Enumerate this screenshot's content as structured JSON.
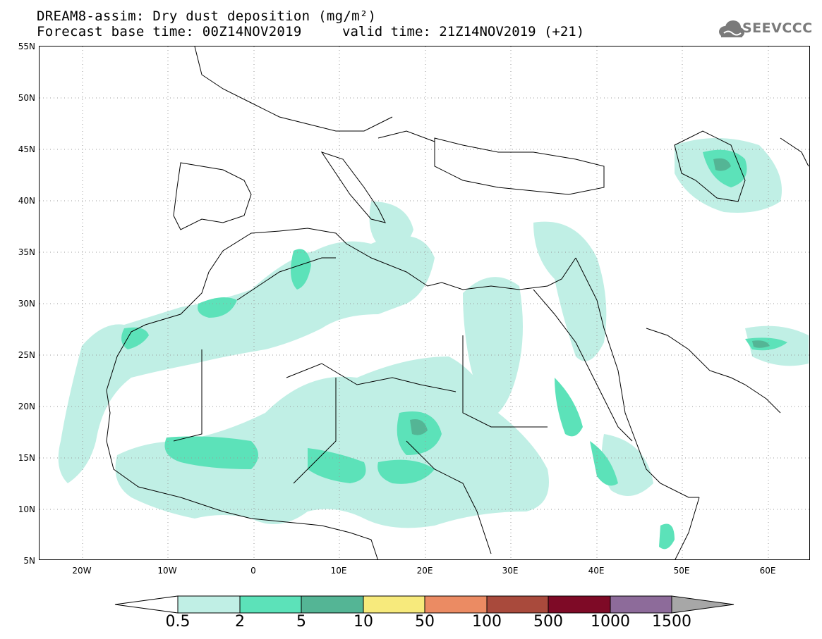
{
  "title_line1": "DREAM8-assim: Dry dust deposition (mg/m²)",
  "title_line2_left": "Forecast base time: 00Z14NOV2019",
  "title_line2_right": "valid time: 21Z14NOV2019 (+21)",
  "logo_text": "SEEVCCC",
  "lat_labels": [
    "55N",
    "50N",
    "45N",
    "40N",
    "35N",
    "30N",
    "25N",
    "20N",
    "15N",
    "10N",
    "5N"
  ],
  "lon_labels": [
    "20W",
    "10W",
    "0",
    "10E",
    "20E",
    "30E",
    "40E",
    "50E",
    "60E"
  ],
  "colorbar": {
    "labels": [
      "0.5",
      "2",
      "5",
      "10",
      "50",
      "100",
      "500",
      "1000",
      "1500"
    ],
    "colors": [
      "#c0efe5",
      "#5ce2b9",
      "#54b595",
      "#f7ea7c",
      "#eb8b63",
      "#a94a3c",
      "#7e0a26",
      "#8d6b9a",
      "#a7a7a7"
    ]
  },
  "extent": {
    "lon_min": -25,
    "lon_max": 65,
    "lat_min": 5,
    "lat_max": 55
  }
}
